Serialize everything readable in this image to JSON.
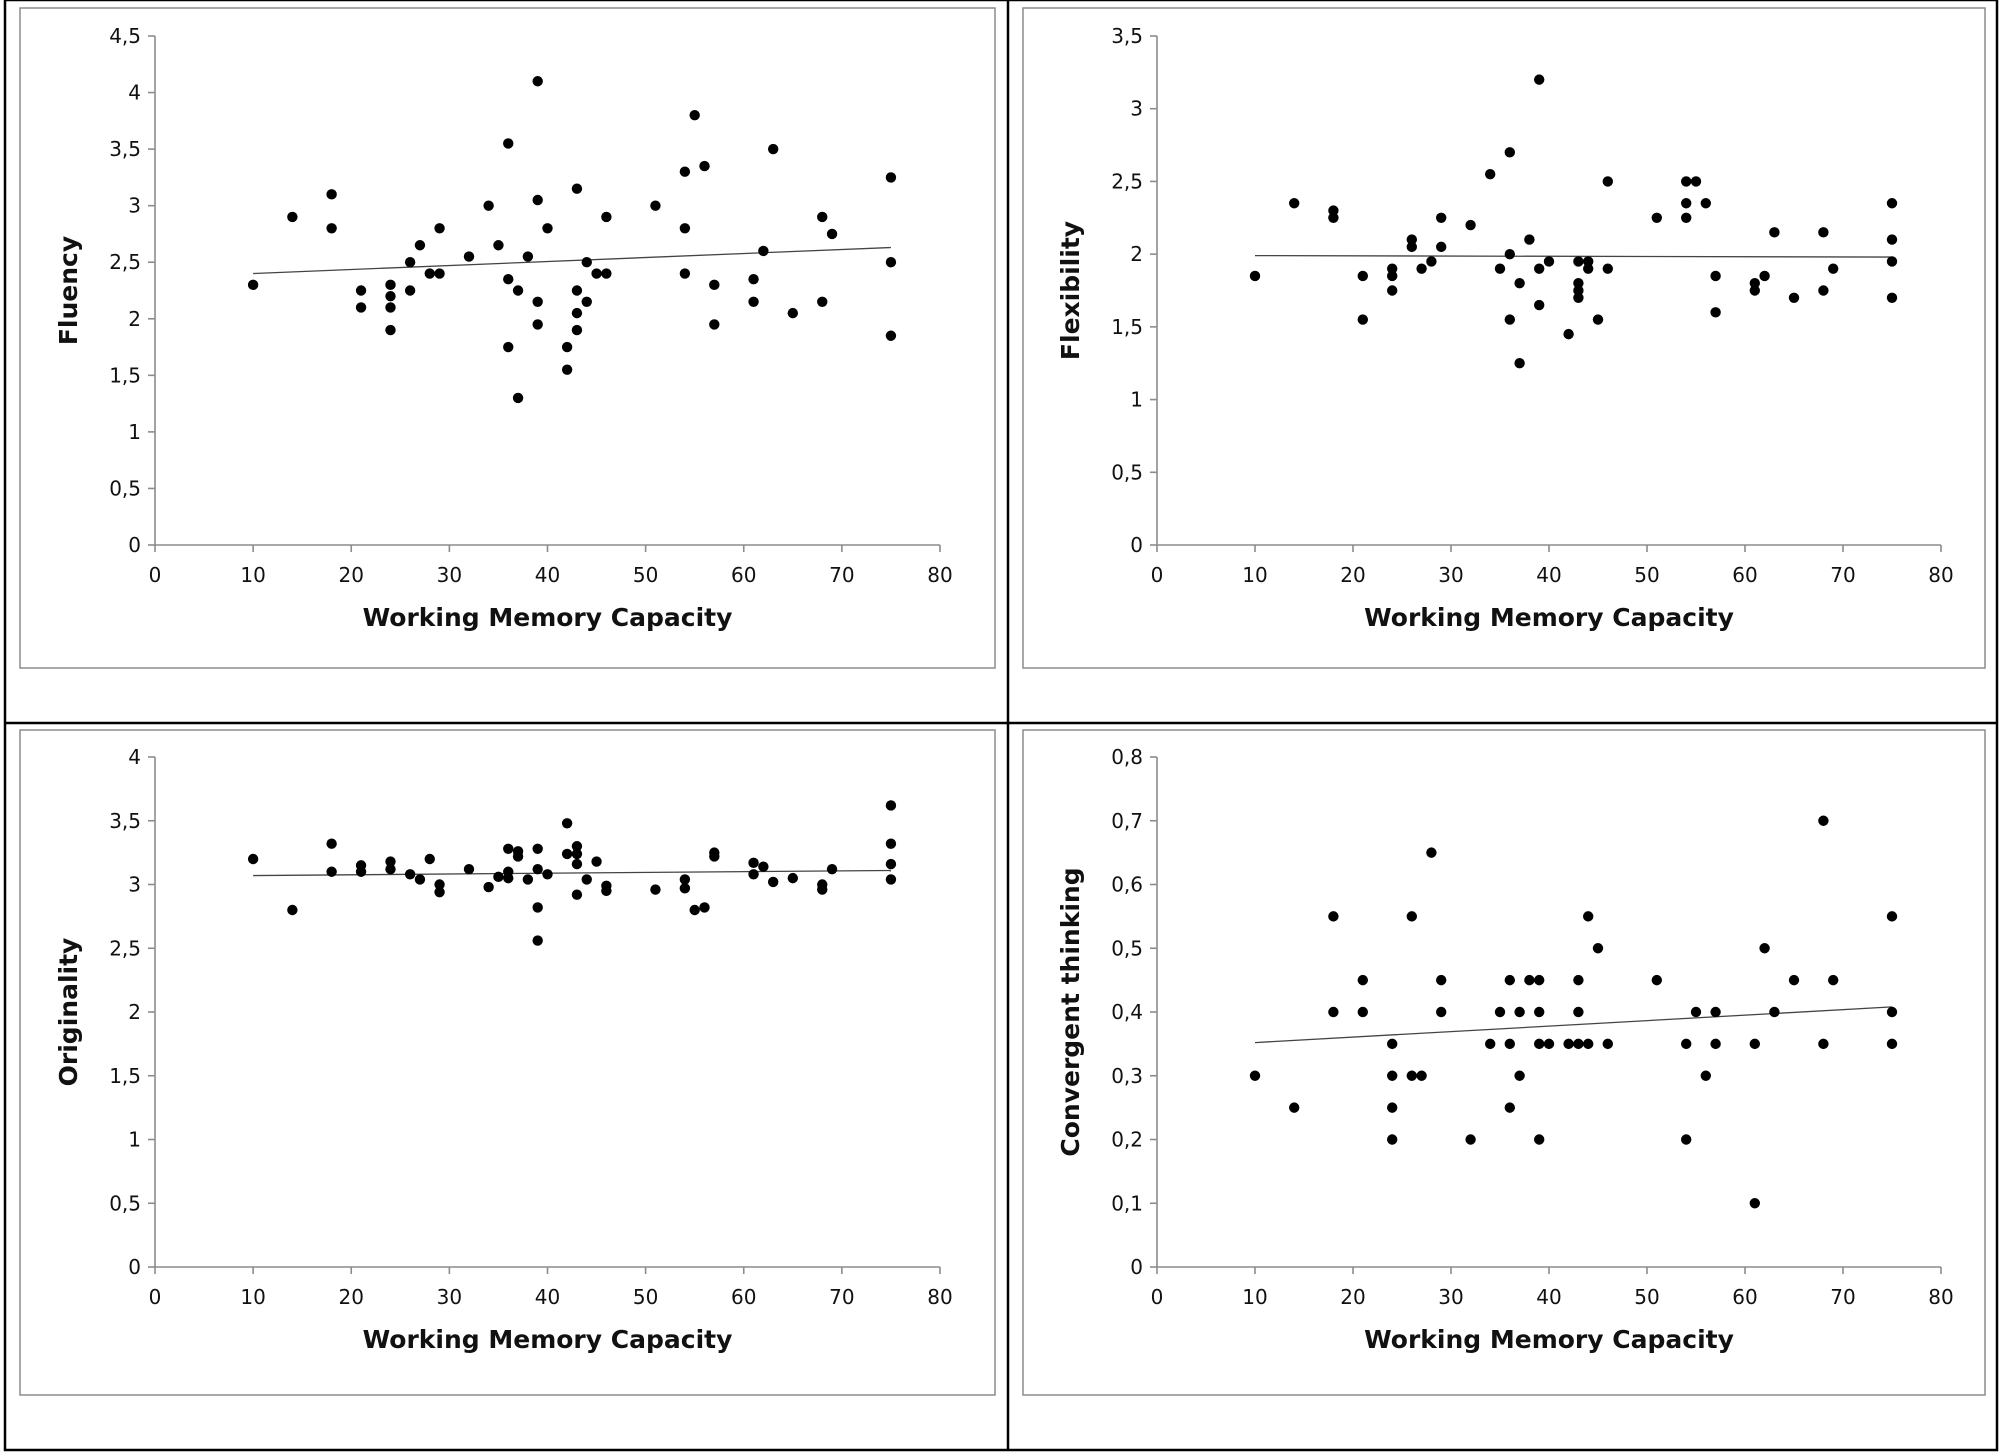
{
  "chart_data": [
    {
      "type": "scatter",
      "xlabel": "Working Memory Capacity",
      "ylabel": "Fluency",
      "xlim": [
        0,
        80
      ],
      "ylim": [
        0,
        4.5
      ],
      "xticks": [
        "0",
        "10",
        "20",
        "30",
        "40",
        "50",
        "60",
        "70",
        "80"
      ],
      "yticks": [
        "0",
        "0,5",
        "1",
        "1,5",
        "2",
        "2,5",
        "3",
        "3,5",
        "4",
        "4,5"
      ],
      "trendline": [
        [
          10,
          2.4
        ],
        [
          75,
          2.63
        ]
      ],
      "points": [
        [
          10,
          2.3
        ],
        [
          14,
          2.9
        ],
        [
          18,
          3.1
        ],
        [
          18,
          2.8
        ],
        [
          21,
          2.25
        ],
        [
          21,
          2.1
        ],
        [
          24,
          2.3
        ],
        [
          24,
          2.2
        ],
        [
          24,
          2.1
        ],
        [
          24,
          1.9
        ],
        [
          26,
          2.5
        ],
        [
          26,
          2.25
        ],
        [
          27,
          2.65
        ],
        [
          28,
          2.4
        ],
        [
          29,
          2.8
        ],
        [
          29,
          2.4
        ],
        [
          32,
          2.55
        ],
        [
          34,
          3.0
        ],
        [
          35,
          2.65
        ],
        [
          36,
          3.55
        ],
        [
          36,
          2.35
        ],
        [
          36,
          1.75
        ],
        [
          37,
          2.25
        ],
        [
          37,
          1.3
        ],
        [
          38,
          2.55
        ],
        [
          39,
          4.1
        ],
        [
          39,
          3.05
        ],
        [
          39,
          2.15
        ],
        [
          39,
          1.95
        ],
        [
          40,
          2.8
        ],
        [
          42,
          1.75
        ],
        [
          42,
          1.55
        ],
        [
          43,
          3.15
        ],
        [
          43,
          2.25
        ],
        [
          43,
          2.05
        ],
        [
          43,
          1.9
        ],
        [
          44,
          2.5
        ],
        [
          44,
          2.15
        ],
        [
          45,
          2.4
        ],
        [
          46,
          2.9
        ],
        [
          46,
          2.4
        ],
        [
          51,
          3.0
        ],
        [
          54,
          3.3
        ],
        [
          54,
          2.8
        ],
        [
          54,
          2.4
        ],
        [
          55,
          3.8
        ],
        [
          56,
          3.35
        ],
        [
          57,
          2.3
        ],
        [
          57,
          1.95
        ],
        [
          61,
          2.35
        ],
        [
          61,
          2.15
        ],
        [
          62,
          2.6
        ],
        [
          63,
          3.5
        ],
        [
          65,
          2.05
        ],
        [
          68,
          2.9
        ],
        [
          68,
          2.15
        ],
        [
          69,
          2.75
        ],
        [
          75,
          3.25
        ],
        [
          75,
          2.5
        ],
        [
          75,
          1.85
        ]
      ]
    },
    {
      "type": "scatter",
      "xlabel": "Working Memory Capacity",
      "ylabel": "Flexibility",
      "xlim": [
        0,
        80
      ],
      "ylim": [
        0,
        3.5
      ],
      "xticks": [
        "0",
        "10",
        "20",
        "30",
        "40",
        "50",
        "60",
        "70",
        "80"
      ],
      "yticks": [
        "0",
        "0,5",
        "1",
        "1,5",
        "2",
        "2,5",
        "3",
        "3,5"
      ],
      "trendline": [
        [
          10,
          1.99
        ],
        [
          75,
          1.98
        ]
      ],
      "points": [
        [
          10,
          1.85
        ],
        [
          14,
          2.35
        ],
        [
          18,
          2.3
        ],
        [
          18,
          2.25
        ],
        [
          21,
          1.85
        ],
        [
          21,
          1.55
        ],
        [
          24,
          1.9
        ],
        [
          24,
          1.85
        ],
        [
          24,
          1.75
        ],
        [
          26,
          2.1
        ],
        [
          26,
          2.05
        ],
        [
          27,
          1.9
        ],
        [
          28,
          1.95
        ],
        [
          29,
          2.25
        ],
        [
          29,
          2.05
        ],
        [
          32,
          2.2
        ],
        [
          34,
          2.55
        ],
        [
          35,
          1.9
        ],
        [
          36,
          2.7
        ],
        [
          36,
          2.0
        ],
        [
          36,
          1.55
        ],
        [
          37,
          1.8
        ],
        [
          37,
          1.25
        ],
        [
          38,
          2.1
        ],
        [
          39,
          3.2
        ],
        [
          39,
          1.9
        ],
        [
          39,
          1.65
        ],
        [
          40,
          1.95
        ],
        [
          42,
          1.45
        ],
        [
          43,
          1.95
        ],
        [
          43,
          1.8
        ],
        [
          43,
          1.75
        ],
        [
          43,
          1.7
        ],
        [
          44,
          1.95
        ],
        [
          44,
          1.9
        ],
        [
          45,
          1.55
        ],
        [
          46,
          2.5
        ],
        [
          46,
          1.9
        ],
        [
          51,
          2.25
        ],
        [
          54,
          2.5
        ],
        [
          54,
          2.35
        ],
        [
          54,
          2.25
        ],
        [
          55,
          2.5
        ],
        [
          56,
          2.35
        ],
        [
          57,
          1.85
        ],
        [
          57,
          1.6
        ],
        [
          61,
          1.8
        ],
        [
          61,
          1.75
        ],
        [
          62,
          1.85
        ],
        [
          63,
          2.15
        ],
        [
          65,
          1.7
        ],
        [
          68,
          2.15
        ],
        [
          68,
          1.75
        ],
        [
          69,
          1.9
        ],
        [
          75,
          2.35
        ],
        [
          75,
          2.1
        ],
        [
          75,
          1.95
        ],
        [
          75,
          1.7
        ]
      ]
    },
    {
      "type": "scatter",
      "xlabel": "Working Memory Capacity",
      "ylabel": "Originality",
      "xlim": [
        0,
        80
      ],
      "ylim": [
        0,
        4
      ],
      "xticks": [
        "0",
        "10",
        "20",
        "30",
        "40",
        "50",
        "60",
        "70",
        "80"
      ],
      "yticks": [
        "0",
        "0,5",
        "1",
        "1,5",
        "2",
        "2,5",
        "3",
        "3,5",
        "4"
      ],
      "trendline": [
        [
          10,
          3.07
        ],
        [
          75,
          3.11
        ]
      ],
      "points": [
        [
          10,
          3.2
        ],
        [
          14,
          2.8
        ],
        [
          18,
          3.32
        ],
        [
          18,
          3.1
        ],
        [
          21,
          3.15
        ],
        [
          21,
          3.1
        ],
        [
          24,
          3.18
        ],
        [
          24,
          3.12
        ],
        [
          26,
          3.08
        ],
        [
          27,
          3.04
        ],
        [
          28,
          3.2
        ],
        [
          29,
          3.0
        ],
        [
          29,
          2.94
        ],
        [
          32,
          3.12
        ],
        [
          34,
          2.98
        ],
        [
          35,
          3.06
        ],
        [
          36,
          3.28
        ],
        [
          36,
          3.1
        ],
        [
          36,
          3.05
        ],
        [
          37,
          3.26
        ],
        [
          37,
          3.22
        ],
        [
          38,
          3.04
        ],
        [
          39,
          3.28
        ],
        [
          39,
          3.12
        ],
        [
          39,
          2.82
        ],
        [
          39,
          2.56
        ],
        [
          40,
          3.08
        ],
        [
          42,
          3.48
        ],
        [
          42,
          3.24
        ],
        [
          43,
          3.3
        ],
        [
          43,
          3.24
        ],
        [
          43,
          3.16
        ],
        [
          43,
          2.92
        ],
        [
          44,
          3.04
        ],
        [
          45,
          3.18
        ],
        [
          46,
          2.99
        ],
        [
          46,
          2.95
        ],
        [
          51,
          2.96
        ],
        [
          54,
          3.04
        ],
        [
          54,
          2.97
        ],
        [
          55,
          2.8
        ],
        [
          56,
          2.82
        ],
        [
          57,
          3.25
        ],
        [
          57,
          3.22
        ],
        [
          61,
          3.17
        ],
        [
          61,
          3.08
        ],
        [
          62,
          3.14
        ],
        [
          63,
          3.02
        ],
        [
          65,
          3.05
        ],
        [
          68,
          3.0
        ],
        [
          68,
          2.96
        ],
        [
          69,
          3.12
        ],
        [
          75,
          3.62
        ],
        [
          75,
          3.32
        ],
        [
          75,
          3.16
        ],
        [
          75,
          3.04
        ]
      ]
    },
    {
      "type": "scatter",
      "xlabel": "Working Memory Capacity",
      "ylabel": "Convergent thinking",
      "xlim": [
        0,
        80
      ],
      "ylim": [
        0,
        0.8
      ],
      "xticks": [
        "0",
        "10",
        "20",
        "30",
        "40",
        "50",
        "60",
        "70",
        "80"
      ],
      "yticks": [
        "0",
        "0,1",
        "0,2",
        "0,3",
        "0,4",
        "0,5",
        "0,6",
        "0,7",
        "0,8"
      ],
      "trendline": [
        [
          10,
          0.352
        ],
        [
          75,
          0.408
        ]
      ],
      "points": [
        [
          10,
          0.3
        ],
        [
          14,
          0.25
        ],
        [
          18,
          0.55
        ],
        [
          18,
          0.4
        ],
        [
          21,
          0.45
        ],
        [
          21,
          0.4
        ],
        [
          24,
          0.35
        ],
        [
          24,
          0.3
        ],
        [
          24,
          0.25
        ],
        [
          24,
          0.2
        ],
        [
          26,
          0.55
        ],
        [
          26,
          0.3
        ],
        [
          27,
          0.3
        ],
        [
          28,
          0.65
        ],
        [
          29,
          0.45
        ],
        [
          29,
          0.4
        ],
        [
          32,
          0.2
        ],
        [
          34,
          0.35
        ],
        [
          35,
          0.4
        ],
        [
          36,
          0.45
        ],
        [
          36,
          0.35
        ],
        [
          36,
          0.25
        ],
        [
          37,
          0.4
        ],
        [
          37,
          0.3
        ],
        [
          38,
          0.45
        ],
        [
          39,
          0.45
        ],
        [
          39,
          0.4
        ],
        [
          39,
          0.35
        ],
        [
          39,
          0.2
        ],
        [
          40,
          0.35
        ],
        [
          42,
          0.35
        ],
        [
          43,
          0.45
        ],
        [
          43,
          0.4
        ],
        [
          43,
          0.35
        ],
        [
          44,
          0.55
        ],
        [
          44,
          0.35
        ],
        [
          45,
          0.5
        ],
        [
          46,
          0.35
        ],
        [
          51,
          0.45
        ],
        [
          54,
          0.35
        ],
        [
          54,
          0.2
        ],
        [
          55,
          0.4
        ],
        [
          56,
          0.3
        ],
        [
          57,
          0.4
        ],
        [
          57,
          0.35
        ],
        [
          61,
          0.35
        ],
        [
          61,
          0.1
        ],
        [
          62,
          0.5
        ],
        [
          63,
          0.4
        ],
        [
          65,
          0.45
        ],
        [
          68,
          0.7
        ],
        [
          68,
          0.35
        ],
        [
          69,
          0.45
        ],
        [
          75,
          0.55
        ],
        [
          75,
          0.4
        ],
        [
          75,
          0.35
        ]
      ]
    }
  ]
}
